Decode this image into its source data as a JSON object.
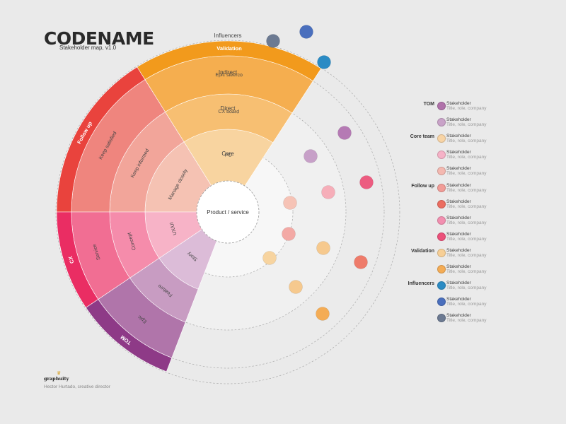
{
  "header": {
    "title": "CODENAME",
    "subtitle": "Stakeholder map, v1.0"
  },
  "diagram": {
    "center_label": "Product / service",
    "rings": [
      "Core",
      "Direct",
      "Indirect",
      "Influencers"
    ],
    "categories": [
      {
        "label": "Validation",
        "items": [
          "PO",
          "CX board",
          "Epic steerco"
        ],
        "colors": [
          "#f8d4a0",
          "#f7bf72",
          "#f5ae4f"
        ],
        "band": "#f29a1c"
      },
      {
        "label": "Follow up",
        "items": [
          "Manage closely",
          "Keep informed",
          "Keep satisfied"
        ],
        "colors": [
          "#f5c2b3",
          "#f2a59a",
          "#ef857e"
        ],
        "band": "#e9433d"
      },
      {
        "label": "CX",
        "items": [
          "UX/UI",
          "Concept",
          "Service"
        ],
        "colors": [
          "#f7b3c7",
          "#f58cab",
          "#f16e93"
        ],
        "band": "#ea2d63"
      },
      {
        "label": "TOM",
        "items": [
          "Story",
          "Feature",
          "Epic"
        ],
        "colors": [
          "#dcbcd8",
          "#c89cc2",
          "#b075aa"
        ],
        "band": "#8e3a87"
      }
    ],
    "stakeholders": [
      {
        "color": "#f6c3b6"
      },
      {
        "color": "#f5a7bd"
      },
      {
        "color": "#f7d4a0"
      },
      {
        "color": "#f6aeb9"
      },
      {
        "color": "#c7a0c8"
      },
      {
        "color": "#f07aa0"
      },
      {
        "color": "#f3a9a5"
      },
      {
        "color": "#f6c98e"
      },
      {
        "color": "#b57ab4"
      },
      {
        "color": "#ec5c80"
      },
      {
        "color": "#ee7b6a"
      },
      {
        "color": "#f4ac55"
      },
      {
        "color": "#6c7a92"
      },
      {
        "color": "#4a6fbd"
      },
      {
        "color": "#2b8bc4"
      }
    ]
  },
  "legend": [
    {
      "group": "TOM",
      "color": "#b072aa",
      "name": "Stakeholder",
      "role": "Title, role, company"
    },
    {
      "group": "",
      "color": "#c9a3c8",
      "name": "Stakeholder",
      "role": "Title, role, company"
    },
    {
      "group": "Core team",
      "color": "#f8d4a5",
      "name": "Stakeholder",
      "role": "Title, role, company"
    },
    {
      "group": "",
      "color": "#f6b2c7",
      "name": "Stakeholder",
      "role": "Title, role, company"
    },
    {
      "group": "",
      "color": "#f4b8b0",
      "name": "Stakeholder",
      "role": "Title, role, company"
    },
    {
      "group": "Follow up",
      "color": "#f19c97",
      "name": "Stakeholder",
      "role": "Title, role, company"
    },
    {
      "group": "",
      "color": "#ec6d60",
      "name": "Stakeholder",
      "role": "Title, role, company"
    },
    {
      "group": "",
      "color": "#f28fb0",
      "name": "Stakeholder",
      "role": "Title, role, company"
    },
    {
      "group": "",
      "color": "#ec507a",
      "name": "Stakeholder",
      "role": "Title, role, company"
    },
    {
      "group": "Validation",
      "color": "#f7cf96",
      "name": "Stakeholder",
      "role": "Title, role, company"
    },
    {
      "group": "",
      "color": "#f4ac55",
      "name": "Stakeholder",
      "role": "Title, role, company"
    },
    {
      "group": "Influencers",
      "color": "#2b8bc4",
      "name": "Stakeholder",
      "role": "Title, role, company"
    },
    {
      "group": "",
      "color": "#4a6fbd",
      "name": "Stakeholder",
      "role": "Title, role, company"
    },
    {
      "group": "",
      "color": "#6c7a92",
      "name": "Stakeholder",
      "role": "Title, role, company"
    }
  ],
  "footer": {
    "brand": "graphuity",
    "author": "Hector Hurtado, creative director"
  }
}
